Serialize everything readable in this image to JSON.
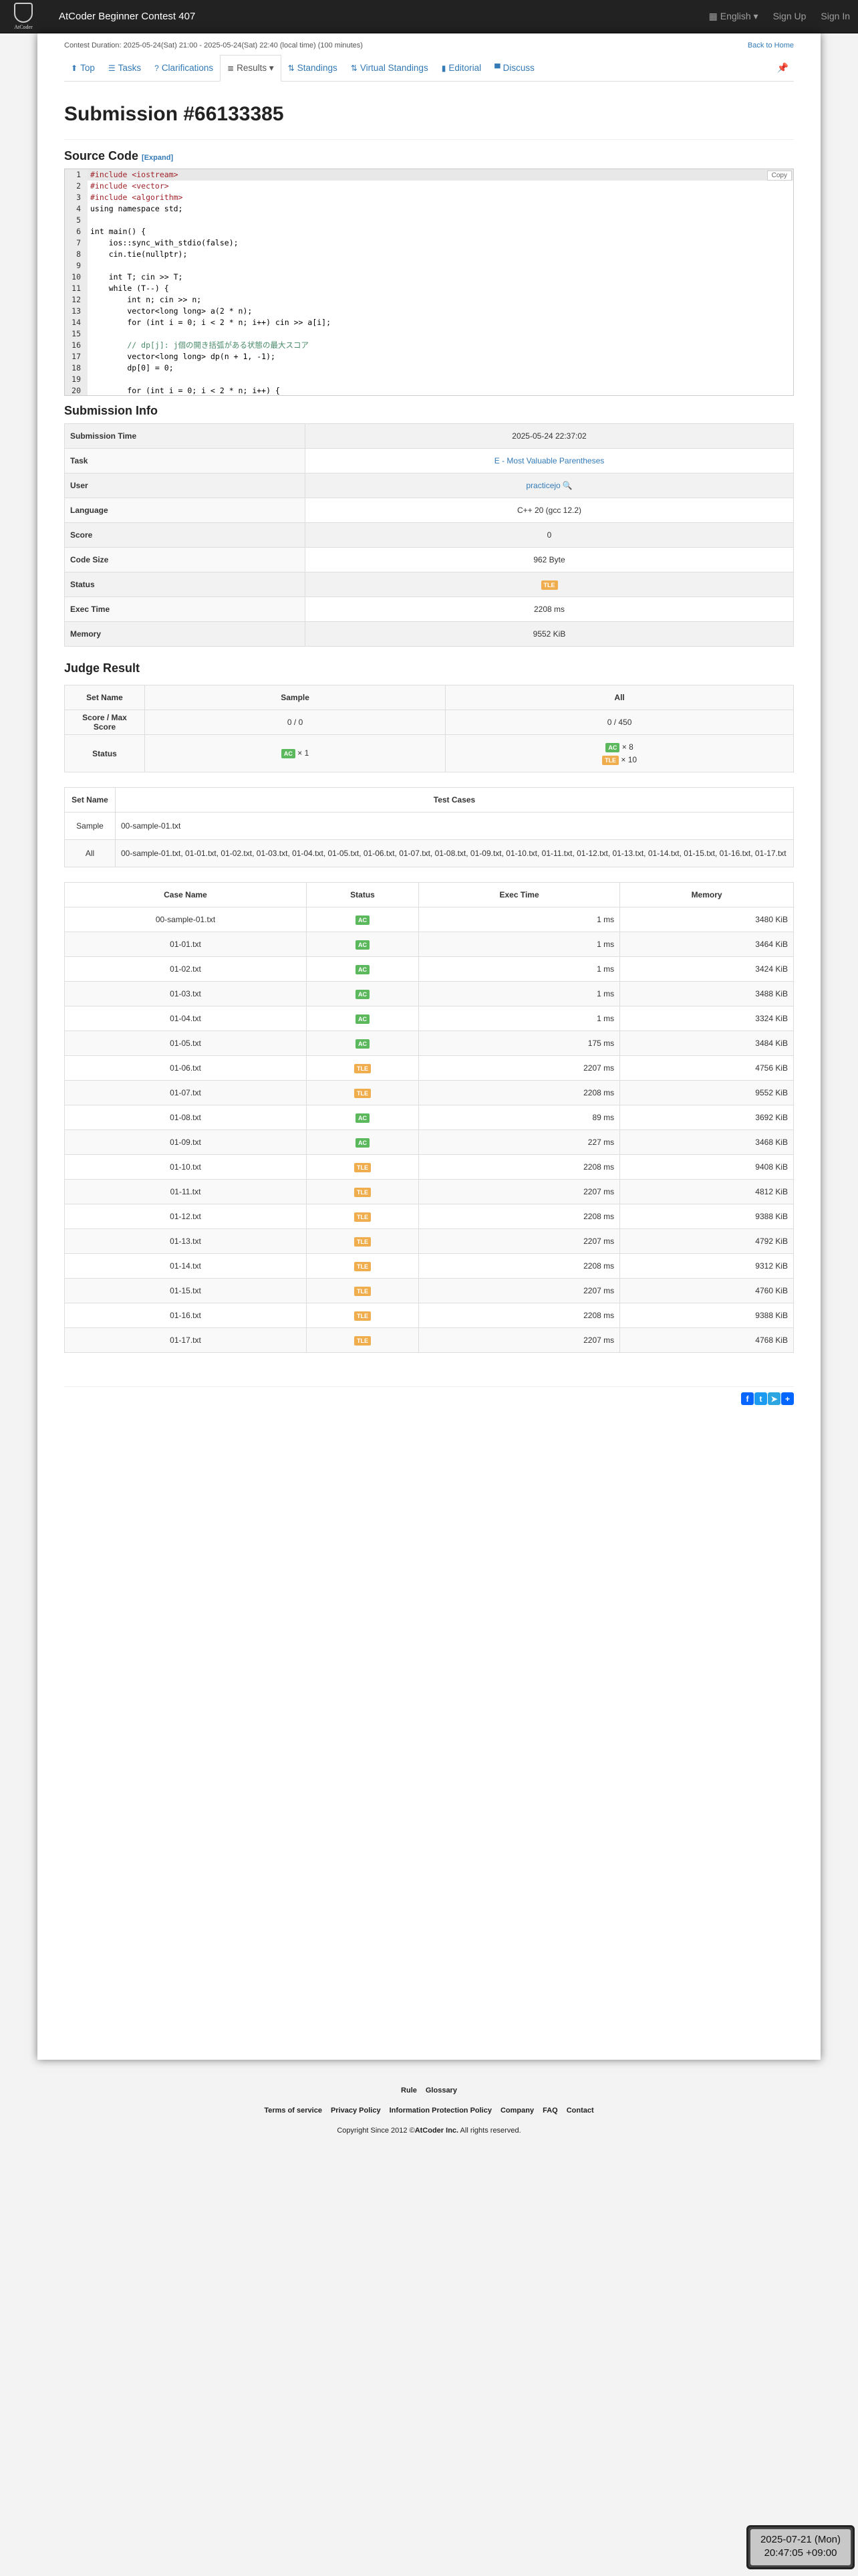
{
  "navbar": {
    "logo_text": "AtCoder",
    "title": "AtCoder Beginner Contest 407",
    "language": "English ▾",
    "sign_up": "Sign Up",
    "sign_in": "Sign In"
  },
  "contest": {
    "duration": "Contest Duration: 2025-05-24(Sat) 21:00 - 2025-05-24(Sat) 22:40 (local time) (100 minutes)",
    "back_home": "Back to Home"
  },
  "tabs": [
    {
      "icon": "home-icon",
      "glyph": "⬆",
      "label": "Top"
    },
    {
      "icon": "tasks-icon",
      "glyph": "☰",
      "label": "Tasks"
    },
    {
      "icon": "question-icon",
      "glyph": "?",
      "label": "Clarifications"
    },
    {
      "icon": "list-icon",
      "glyph": "≣",
      "label": "Results ▾",
      "active": true
    },
    {
      "icon": "sort-icon",
      "glyph": "⇅",
      "label": "Standings"
    },
    {
      "icon": "sort-icon",
      "glyph": "⇅",
      "label": "Virtual Standings"
    },
    {
      "icon": "book-icon",
      "glyph": "▮",
      "label": "Editorial"
    },
    {
      "icon": "comment-icon",
      "glyph": "▀",
      "label": "Discuss"
    }
  ],
  "page_title": "Submission #66133385",
  "source": {
    "heading": "Source Code",
    "expand": "[Expand]",
    "copy": "Copy",
    "lines": [
      "#include <iostream>",
      "#include <vector>",
      "#include <algorithm>",
      "using namespace std;",
      "",
      "int main() {",
      "    ios::sync_with_stdio(false);",
      "    cin.tie(nullptr);",
      "",
      "    int T; cin >> T;",
      "    while (T--) {",
      "        int n; cin >> n;",
      "        vector<long long> a(2 * n);",
      "        for (int i = 0; i < 2 * n; i++) cin >> a[i];",
      "",
      "        // dp[j]: j個の開き括弧がある状態の最大スコア",
      "        vector<long long> dp(n + 1, -1);",
      "        dp[0] = 0;",
      "",
      "        for (int i = 0; i < 2 * n; i++) {"
    ]
  },
  "info": {
    "heading": "Submission Info",
    "rows": [
      {
        "k": "Submission Time",
        "v": "2025-05-24 22:37:02"
      },
      {
        "k": "Task",
        "v": "E - Most Valuable Parentheses",
        "link": true
      },
      {
        "k": "User",
        "v": "practicejo",
        "link": true
      },
      {
        "k": "Language",
        "v": "C++ 20 (gcc 12.2)"
      },
      {
        "k": "Score",
        "v": "0"
      },
      {
        "k": "Code Size",
        "v": "962 Byte"
      },
      {
        "k": "Status",
        "v": "TLE",
        "badge": "tle"
      },
      {
        "k": "Exec Time",
        "v": "2208 ms"
      },
      {
        "k": "Memory",
        "v": "9552 KiB"
      }
    ]
  },
  "judge": {
    "heading": "Judge Result",
    "set_name": "Set Name",
    "sample": "Sample",
    "all": "All",
    "score_label": "Score / Max Score",
    "sample_score": "0 / 0",
    "all_score": "0 / 450",
    "status_label": "Status",
    "sample_ac": "AC",
    "sample_ac_count": "× 1",
    "all_ac": "AC",
    "all_ac_count": "× 8",
    "all_tle": "TLE",
    "all_tle_count": "× 10"
  },
  "testsets": {
    "set_name": "Set Name",
    "test_cases": "Test Cases",
    "rows": [
      {
        "name": "Sample",
        "cases": "00-sample-01.txt"
      },
      {
        "name": "All",
        "cases": "00-sample-01.txt, 01-01.txt, 01-02.txt, 01-03.txt, 01-04.txt, 01-05.txt, 01-06.txt, 01-07.txt, 01-08.txt, 01-09.txt, 01-10.txt, 01-11.txt, 01-12.txt, 01-13.txt, 01-14.txt, 01-15.txt, 01-16.txt, 01-17.txt"
      }
    ]
  },
  "cases": {
    "headers": [
      "Case Name",
      "Status",
      "Exec Time",
      "Memory"
    ],
    "rows": [
      [
        "00-sample-01.txt",
        "AC",
        "1 ms",
        "3480 KiB"
      ],
      [
        "01-01.txt",
        "AC",
        "1 ms",
        "3464 KiB"
      ],
      [
        "01-02.txt",
        "AC",
        "1 ms",
        "3424 KiB"
      ],
      [
        "01-03.txt",
        "AC",
        "1 ms",
        "3488 KiB"
      ],
      [
        "01-04.txt",
        "AC",
        "1 ms",
        "3324 KiB"
      ],
      [
        "01-05.txt",
        "AC",
        "175 ms",
        "3484 KiB"
      ],
      [
        "01-06.txt",
        "TLE",
        "2207 ms",
        "4756 KiB"
      ],
      [
        "01-07.txt",
        "TLE",
        "2208 ms",
        "9552 KiB"
      ],
      [
        "01-08.txt",
        "AC",
        "89 ms",
        "3692 KiB"
      ],
      [
        "01-09.txt",
        "AC",
        "227 ms",
        "3468 KiB"
      ],
      [
        "01-10.txt",
        "TLE",
        "2208 ms",
        "9408 KiB"
      ],
      [
        "01-11.txt",
        "TLE",
        "2207 ms",
        "4812 KiB"
      ],
      [
        "01-12.txt",
        "TLE",
        "2208 ms",
        "9388 KiB"
      ],
      [
        "01-13.txt",
        "TLE",
        "2207 ms",
        "4792 KiB"
      ],
      [
        "01-14.txt",
        "TLE",
        "2208 ms",
        "9312 KiB"
      ],
      [
        "01-15.txt",
        "TLE",
        "2207 ms",
        "4760 KiB"
      ],
      [
        "01-16.txt",
        "TLE",
        "2208 ms",
        "9388 KiB"
      ],
      [
        "01-17.txt",
        "TLE",
        "2207 ms",
        "4768 KiB"
      ]
    ]
  },
  "share": [
    {
      "icon": "facebook-icon",
      "glyph": "f",
      "color": "#0866ff"
    },
    {
      "icon": "twitter-icon",
      "glyph": "t",
      "color": "#1d9bf0"
    },
    {
      "icon": "telegram-icon",
      "glyph": "➤",
      "color": "#2ca5e0"
    },
    {
      "icon": "share-plus-icon",
      "glyph": "+",
      "color": "#0166ff"
    }
  ],
  "footer": {
    "row1": [
      "Rule",
      "Glossary"
    ],
    "row2": [
      "Terms of service",
      "Privacy Policy",
      "Information Protection Policy",
      "Company",
      "FAQ",
      "Contact"
    ],
    "copyright_pre": "Copyright Since 2012 ©",
    "copyright_company": "AtCoder Inc.",
    "copyright_post": " All rights reserved."
  },
  "clock": {
    "date": "2025-07-21 (Mon)",
    "time": "20:47:05 +09:00"
  },
  "colors": {
    "ac": "#5cb85c",
    "tle": "#f0ad4e",
    "link": "#337ab7",
    "navbar": "#222222"
  }
}
